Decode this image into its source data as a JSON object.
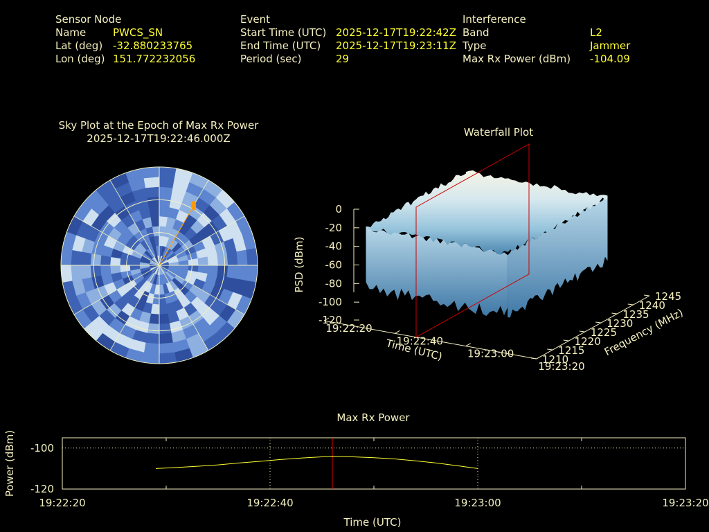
{
  "header": {
    "sensor": {
      "title": "Sensor Node",
      "name_label": "Name",
      "name_value": "PWCS_SN",
      "lat_label": "Lat (deg)",
      "lat_value": "-32.880233765",
      "lon_label": "Lon (deg)",
      "lon_value": "151.772232056"
    },
    "event": {
      "title": "Event",
      "start_label": "Start Time (UTC)",
      "start_value": "2025-12-17T19:22:42Z",
      "end_label": "End Time (UTC)",
      "end_value": "2025-12-17T19:23:11Z",
      "period_label": "Period (sec)",
      "period_value": "29"
    },
    "interference": {
      "title": "Interference",
      "band_label": "Band",
      "band_value": "L2",
      "type_label": "Type",
      "type_value": "Jammer",
      "maxrx_label": "Max Rx Power (dBm)",
      "maxrx_value": "-104.09"
    }
  },
  "colors": {
    "background": "#000000",
    "label_text": "#f5f0c0",
    "value_text": "#ffff33",
    "sky_base": "#4a72c4",
    "sky_light": "#cfe0f0",
    "grid": "#f0f0c0",
    "marker": "#ff9900",
    "cursor": "#dd0000",
    "series": "#ffff33"
  },
  "chart_data": [
    {
      "type": "polar",
      "title": "Sky Plot at the Epoch of Max Rx Power",
      "subtitle": "2025-12-17T19:22:46.000Z",
      "rings_elevation_deg": [
        0,
        30,
        60
      ],
      "marker": {
        "azimuth_deg": 30,
        "elevation_deg": 27,
        "color": "#ff9900"
      }
    },
    {
      "type": "surface",
      "title": "Waterfall Plot",
      "zlabel": "PSD (dBm)",
      "xlabel": "Time (UTC)",
      "ylabel": "Frequency (MHz)",
      "z_ticks": [
        "0",
        "-20",
        "-40",
        "-60",
        "-80",
        "-100",
        "-120"
      ],
      "x_ticks": [
        "19:22:20",
        "19:22:40",
        "19:23:00",
        "19:23:20"
      ],
      "y_ticks": [
        "1210",
        "1215",
        "1220",
        "1225",
        "1230",
        "1235",
        "1240",
        "1245"
      ],
      "zlim": [
        -120,
        0
      ],
      "ylim": [
        1210,
        1245
      ],
      "plane_time": "19:22:46",
      "surface_extent": {
        "time": [
          "19:22:20",
          "19:23:20"
        ],
        "freq": [
          "1210",
          "1245"
        ]
      },
      "psd_plateau_dbm": -20,
      "psd_floor_dbm": -90
    },
    {
      "type": "line",
      "title": "Max Rx Power",
      "xlabel": "Time (UTC)",
      "ylabel": "Power (dBm)",
      "x_ticks": [
        "19:22:20",
        "19:22:40",
        "19:23:00",
        "19:23:20"
      ],
      "y_ticks": [
        "-100",
        "-120"
      ],
      "ylim": [
        -120,
        -95
      ],
      "cursor_time": "19:22:46",
      "series": [
        {
          "x": [
            "19:22:29",
            "19:22:31",
            "19:22:33",
            "19:22:35",
            "19:22:37",
            "19:22:39",
            "19:22:41",
            "19:22:43",
            "19:22:45",
            "19:22:46",
            "19:22:48",
            "19:22:50",
            "19:22:52",
            "19:22:54",
            "19:22:56",
            "19:22:58",
            "19:23:00"
          ],
          "y": [
            -110.0,
            -109.5,
            -108.9,
            -108.2,
            -107.3,
            -106.5,
            -105.6,
            -104.9,
            -104.3,
            -104.1,
            -104.3,
            -104.7,
            -105.3,
            -106.2,
            -107.3,
            -108.6,
            -110.0
          ]
        }
      ]
    }
  ]
}
